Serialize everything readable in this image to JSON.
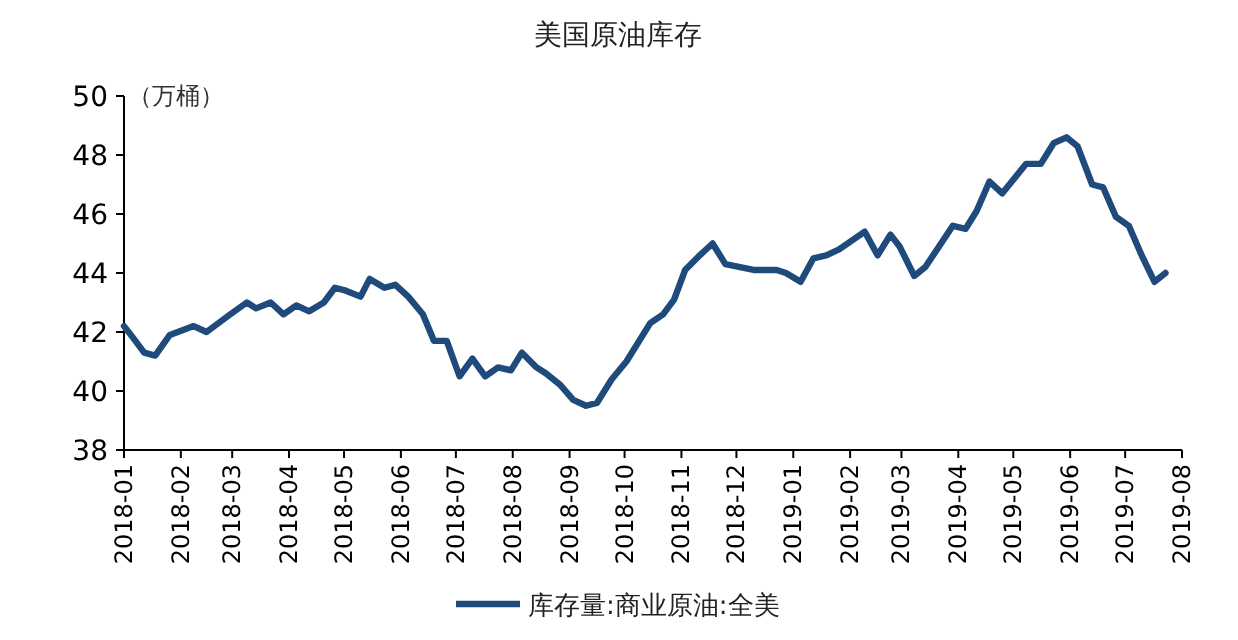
{
  "chart_data": {
    "type": "line",
    "title": "美国原油库存",
    "ylabel": "（万桶）",
    "x": [
      "2018-01-01",
      "2018-01-06",
      "2018-01-12",
      "2018-01-18",
      "2018-01-26",
      "2018-02-08",
      "2018-02-15",
      "2018-02-28",
      "2018-03-09",
      "2018-03-14",
      "2018-03-22",
      "2018-03-29",
      "2018-04-05",
      "2018-04-12",
      "2018-04-20",
      "2018-04-26",
      "2018-05-02",
      "2018-05-10",
      "2018-05-15",
      "2018-05-23",
      "2018-05-29",
      "2018-06-05",
      "2018-06-13",
      "2018-06-19",
      "2018-06-26",
      "2018-07-03",
      "2018-07-10",
      "2018-07-17",
      "2018-07-24",
      "2018-07-31",
      "2018-08-06",
      "2018-08-14",
      "2018-08-19",
      "2018-08-27",
      "2018-09-03",
      "2018-09-10",
      "2018-09-16",
      "2018-09-24",
      "2018-10-02",
      "2018-10-15",
      "2018-10-22",
      "2018-10-28",
      "2018-11-03",
      "2018-11-11",
      "2018-11-18",
      "2018-11-25",
      "2018-12-03",
      "2018-12-11",
      "2018-12-23",
      "2018-12-28",
      "2019-01-05",
      "2019-01-12",
      "2019-01-19",
      "2019-01-26",
      "2019-02-09",
      "2019-02-16",
      "2019-02-23",
      "2019-02-28",
      "2019-03-08",
      "2019-03-14",
      "2019-03-29",
      "2019-04-05",
      "2019-04-11",
      "2019-04-18",
      "2019-04-25",
      "2019-05-08",
      "2019-05-16",
      "2019-05-23",
      "2019-05-30",
      "2019-06-05",
      "2019-06-13",
      "2019-06-19",
      "2019-06-26",
      "2019-07-03",
      "2019-07-10",
      "2019-07-17",
      "2019-07-23"
    ],
    "series": [
      {
        "name": "库存量:商业原油:全美",
        "color": "#1f4a7c",
        "values": [
          42.2,
          41.8,
          41.3,
          41.2,
          41.9,
          42.2,
          42.0,
          42.6,
          43.0,
          42.8,
          43.0,
          42.6,
          42.9,
          42.7,
          43.0,
          43.5,
          43.4,
          43.2,
          43.8,
          43.5,
          43.6,
          43.2,
          42.6,
          41.7,
          41.7,
          40.5,
          41.1,
          40.5,
          40.8,
          40.7,
          41.3,
          40.8,
          40.6,
          40.2,
          39.7,
          39.5,
          39.6,
          40.4,
          41.0,
          42.3,
          42.6,
          43.1,
          44.1,
          44.6,
          45.0,
          44.3,
          44.2,
          44.1,
          44.1,
          44.0,
          43.7,
          44.5,
          44.6,
          44.8,
          45.4,
          44.6,
          45.3,
          44.9,
          43.9,
          44.2,
          45.6,
          45.5,
          46.1,
          47.1,
          46.7,
          47.7,
          47.7,
          48.4,
          48.6,
          48.3,
          47.0,
          46.9,
          45.9,
          45.6,
          44.6,
          43.7,
          44.0
        ]
      }
    ],
    "xlim": [
      "2018-01",
      "2019-08"
    ],
    "xticks": [
      "2018-01",
      "2018-02",
      "2018-03",
      "2018-04",
      "2018-05",
      "2018-06",
      "2018-07",
      "2018-08",
      "2018-09",
      "2018-10",
      "2018-11",
      "2018-12",
      "2019-01",
      "2019-02",
      "2019-03",
      "2019-04",
      "2019-05",
      "2019-06",
      "2019-07",
      "2019-08"
    ],
    "ylim": [
      38,
      50
    ],
    "yticks": [
      38,
      40,
      42,
      44,
      46,
      48,
      50
    ],
    "grid": false,
    "legend": "bottom",
    "marker": "none",
    "line_style": "solid"
  }
}
